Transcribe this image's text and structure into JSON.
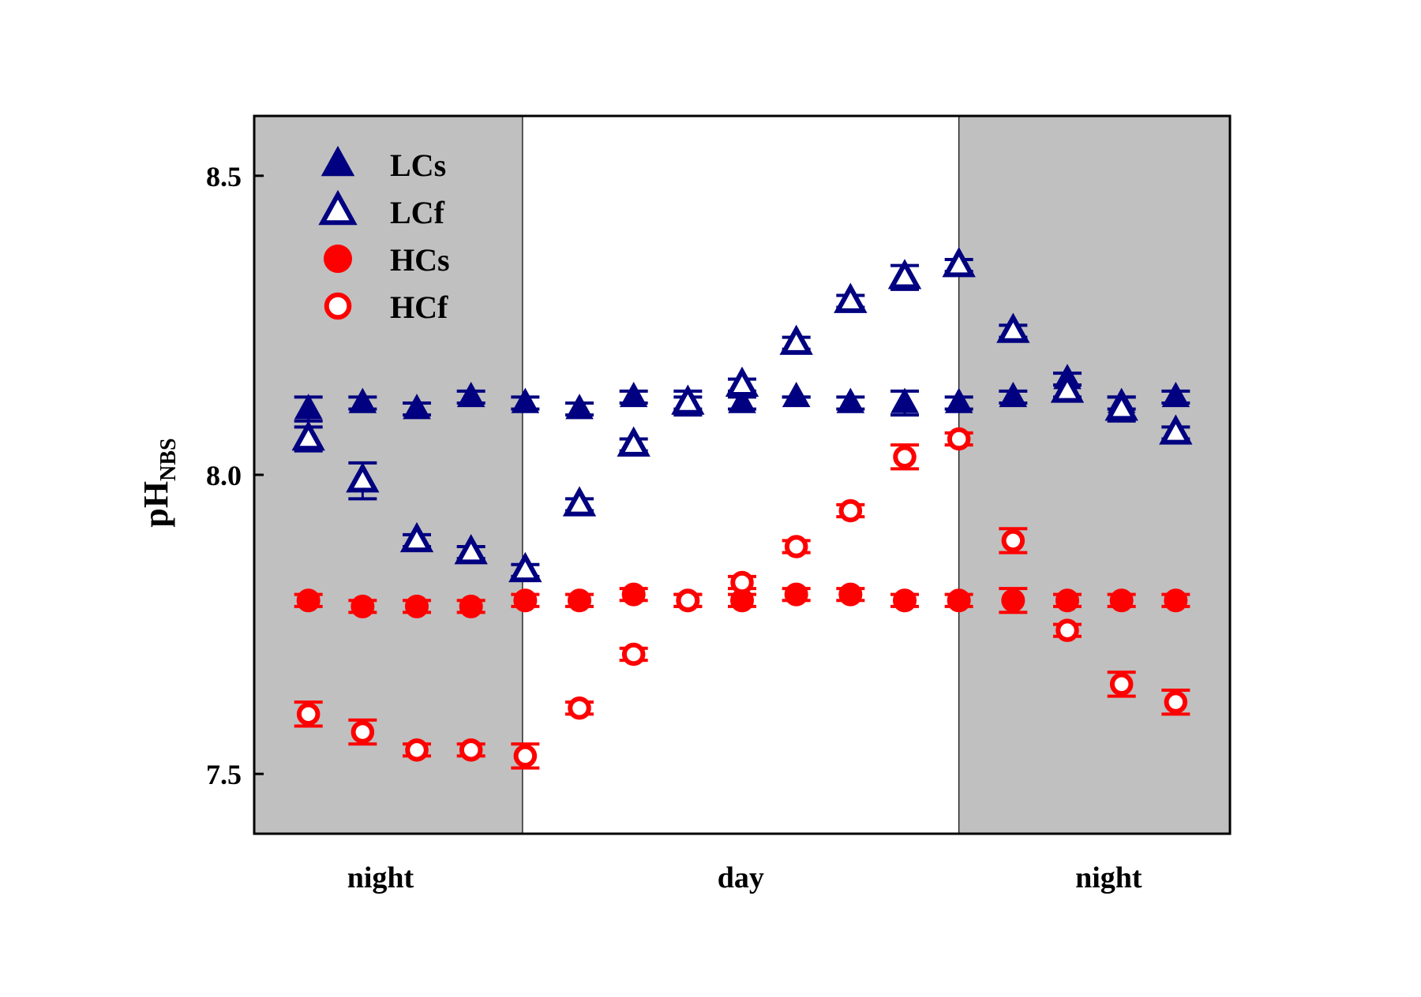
{
  "chart_data": {
    "type": "scatter",
    "ylabel": "pH",
    "ylabel_subscript": "NBS",
    "ylim": [
      7.4,
      8.6
    ],
    "yticks": [
      7.5,
      8.0,
      8.5
    ],
    "ytick_labels": [
      "7.5",
      "8.0",
      "8.5"
    ],
    "x": [
      1,
      2,
      3,
      4,
      5,
      6,
      7,
      8,
      9,
      10,
      11,
      12,
      13,
      14,
      15,
      16,
      17
    ],
    "xlim": [
      0,
      18
    ],
    "periods": [
      {
        "label": "night",
        "start": 0,
        "end": 4.95,
        "shaded": true
      },
      {
        "label": "day",
        "start": 4.95,
        "end": 13.0,
        "shaded": false
      },
      {
        "label": "night",
        "start": 13.0,
        "end": 18,
        "shaded": true
      }
    ],
    "shade_color": "#c0c0c0",
    "grid": false,
    "legend_position": "top-left",
    "series": [
      {
        "name": "LCs",
        "marker": "triangle",
        "filled": true,
        "color": "#000080",
        "values": [
          8.11,
          8.12,
          8.11,
          8.13,
          8.12,
          8.11,
          8.13,
          8.12,
          8.12,
          8.13,
          8.12,
          8.12,
          8.12,
          8.13,
          8.16,
          8.12,
          8.13
        ],
        "errors": [
          0.02,
          0.01,
          0.01,
          0.01,
          0.01,
          0.01,
          0.01,
          0.01,
          0.01,
          0.0,
          0.01,
          0.02,
          0.01,
          0.01,
          0.01,
          0.01,
          0.01
        ]
      },
      {
        "name": "LCf",
        "marker": "triangle",
        "filled": false,
        "color": "#000080",
        "values": [
          8.06,
          7.99,
          7.89,
          7.87,
          7.84,
          7.95,
          8.05,
          8.12,
          8.15,
          8.22,
          8.29,
          8.33,
          8.35,
          8.24,
          8.14,
          8.11,
          8.07
        ],
        "errors": [
          0.02,
          0.03,
          0.01,
          0.01,
          0.01,
          0.01,
          0.01,
          0.02,
          0.01,
          0.01,
          0.01,
          0.02,
          0.01,
          0.01,
          0.01,
          0.02,
          0.01
        ]
      },
      {
        "name": "HCs",
        "marker": "circle",
        "filled": true,
        "color": "#ff0000",
        "values": [
          7.79,
          7.78,
          7.78,
          7.78,
          7.79,
          7.79,
          7.8,
          7.79,
          7.79,
          7.8,
          7.8,
          7.79,
          7.79,
          7.79,
          7.79,
          7.79,
          7.79
        ],
        "errors": [
          0.01,
          0.01,
          0.01,
          0.01,
          0.01,
          0.01,
          0.01,
          0.01,
          0.01,
          0.01,
          0.01,
          0.01,
          0.01,
          0.02,
          0.01,
          0.01,
          0.01
        ]
      },
      {
        "name": "HCf",
        "marker": "circle",
        "filled": false,
        "color": "#ff0000",
        "values": [
          7.6,
          7.57,
          7.54,
          7.54,
          7.53,
          7.61,
          7.7,
          7.79,
          7.82,
          7.88,
          7.94,
          8.03,
          8.06,
          7.89,
          7.74,
          7.65,
          7.62
        ],
        "errors": [
          0.02,
          0.02,
          0.01,
          0.01,
          0.02,
          0.01,
          0.01,
          0.01,
          0.01,
          0.01,
          0.01,
          0.02,
          0.01,
          0.02,
          0.01,
          0.02,
          0.02
        ]
      }
    ]
  }
}
